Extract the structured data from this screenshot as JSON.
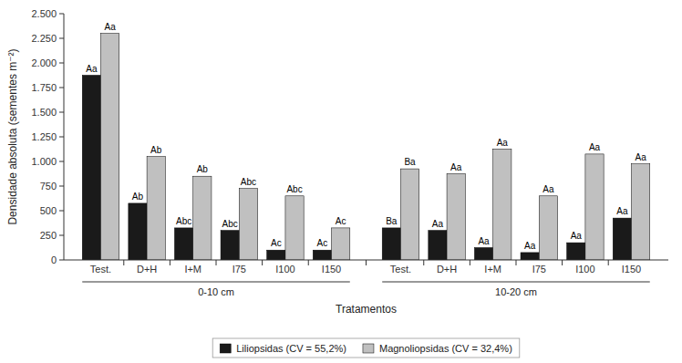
{
  "chart_data": {
    "type": "bar",
    "categories": [
      "Test.",
      "D+H",
      "I+M",
      "I75",
      "I100",
      "I150",
      "Test.",
      "D+H",
      "I+M",
      "I75",
      "I100",
      "I150"
    ],
    "category_groups": [
      {
        "label": "0-10 cm",
        "count": 6
      },
      {
        "label": "10-20 cm",
        "count": 6
      }
    ],
    "series": [
      {
        "name": "Liliopsidas (CV = 55,2%)",
        "color": "#1a1a1a",
        "values": [
          1875,
          575,
          325,
          300,
          100,
          100,
          325,
          300,
          125,
          75,
          175,
          425
        ],
        "annotations": [
          "Aa",
          "Ab",
          "Abc",
          "Abc",
          "Ac",
          "Ac",
          "Ba",
          "Aa",
          "Aa",
          "Aa",
          "Aa",
          "Aa"
        ]
      },
      {
        "name": "Magnoliopsidas (CV = 32,4%)",
        "color": "#c0c0c0",
        "values": [
          2300,
          1050,
          850,
          725,
          650,
          325,
          925,
          875,
          1125,
          650,
          1075,
          975
        ],
        "annotations": [
          "Aa",
          "Ab",
          "Ab",
          "Abc",
          "Abc",
          "Ac",
          "Ba",
          "Aa",
          "Aa",
          "Aa",
          "Aa",
          "Aa"
        ]
      }
    ],
    "y_label": "Densidade absoluta (sementes m⁻²)",
    "x_label": "Tratamentos",
    "ylim": [
      0,
      2500
    ],
    "yticks": [
      0,
      250,
      500,
      750,
      {
        "value": 1000,
        "label": "1.000"
      },
      {
        "value": 1250,
        "label": "1.250"
      },
      {
        "value": 1500,
        "label": "1.500"
      },
      {
        "value": 1750,
        "label": "1.750"
      },
      {
        "value": 2000,
        "label": "2.000"
      },
      {
        "value": 2250,
        "label": "2.250"
      },
      {
        "value": 2500,
        "label": "2.500"
      }
    ],
    "grid": false,
    "legend": "bottom"
  }
}
